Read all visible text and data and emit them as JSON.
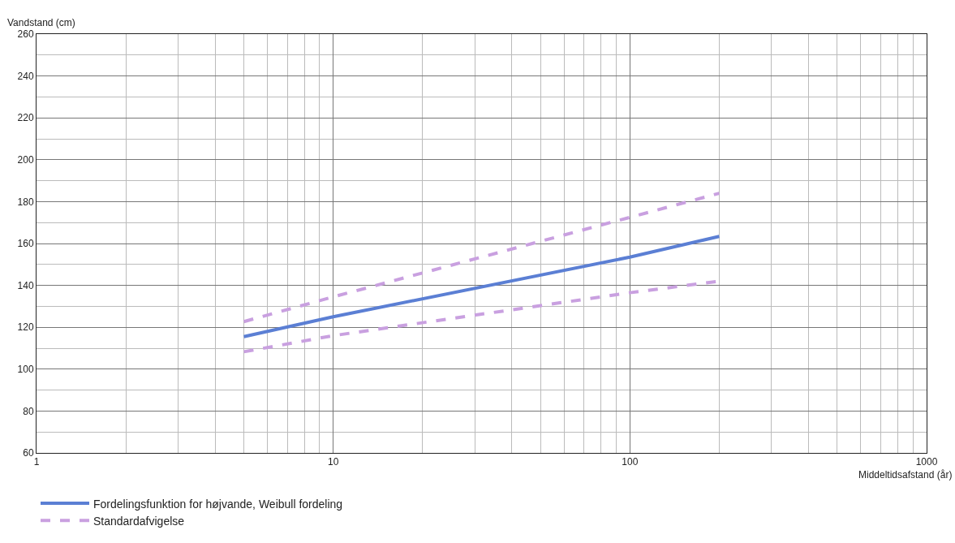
{
  "chart_data": {
    "type": "line",
    "xlabel": "Middeltidsafstand (år)",
    "ylabel": "Vandstand (cm)",
    "log": "x",
    "xlim": [
      1,
      1000
    ],
    "xticks": [
      1,
      10,
      100,
      1000
    ],
    "ylim": [
      60,
      260
    ],
    "yticks": [
      60,
      80,
      100,
      120,
      140,
      160,
      180,
      200,
      220,
      240,
      260
    ],
    "grid": true,
    "legend": "bottom",
    "marker": "none",
    "series": [
      {
        "name": "Fordelingsfunktion for højvande, Weibull fordeling",
        "color": "#5b7fd4",
        "line_style": "solid",
        "x": [
          5,
          10,
          100,
          200
        ],
        "values": [
          115.5,
          125,
          153.5,
          163.4
        ]
      },
      {
        "name": "Standardafvigelse",
        "color": "#c9a0e0",
        "line_style": "dashed",
        "x": [
          5,
          10,
          100,
          200
        ],
        "values": [
          122.7,
          134.5,
          172.5,
          184
        ]
      },
      {
        "color": "#c9a0e0",
        "line_style": "dashed",
        "x": [
          5,
          10,
          100,
          200
        ],
        "values": [
          108.3,
          116,
          136.5,
          142
        ]
      }
    ]
  }
}
